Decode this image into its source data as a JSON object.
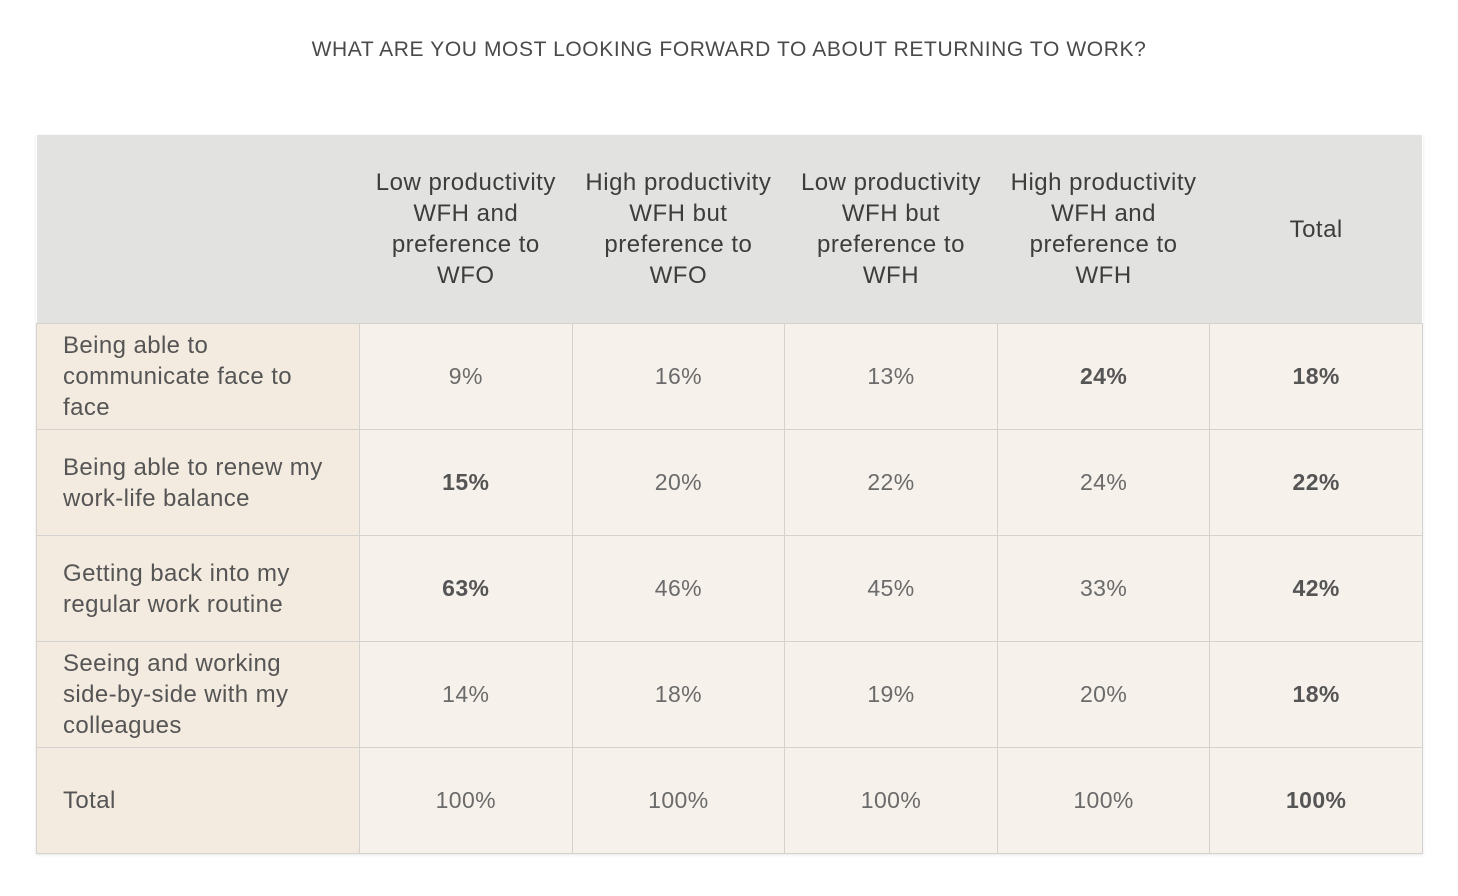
{
  "title": "WHAT ARE YOU MOST LOOKING FORWARD TO ABOUT RETURNING TO WORK?",
  "colors": {
    "header_bg": "#e2e2e0",
    "label_bg": "#f4ebe0",
    "cell_bg": "#f6f1eb",
    "border": "#d4d2cf"
  },
  "chart_data": {
    "type": "table",
    "title": "WHAT ARE YOU MOST LOOKING FORWARD TO ABOUT RETURNING TO WORK?",
    "columns": [
      "Low productivity WFH and preference to WFO",
      "High productivity WFH but preference to WFO",
      "Low productivity WFH but preference to WFH",
      "High productivity WFH and preference to WFH",
      "Total"
    ],
    "rows": [
      {
        "label": "Being able to communicate face to face",
        "values": [
          "9%",
          "16%",
          "13%",
          "24%",
          "18%"
        ],
        "bold": [
          false,
          false,
          false,
          true,
          true
        ]
      },
      {
        "label": "Being able to renew my work-life balance",
        "values": [
          "15%",
          "20%",
          "22%",
          "24%",
          "22%"
        ],
        "bold": [
          true,
          false,
          false,
          false,
          true
        ]
      },
      {
        "label": "Getting back into my regular work routine",
        "values": [
          "63%",
          "46%",
          "45%",
          "33%",
          "42%"
        ],
        "bold": [
          true,
          false,
          false,
          false,
          true
        ]
      },
      {
        "label": "Seeing and working side-by-side with my colleagues",
        "values": [
          "14%",
          "18%",
          "19%",
          "20%",
          "18%"
        ],
        "bold": [
          false,
          false,
          false,
          false,
          true
        ]
      },
      {
        "label": "Total",
        "values": [
          "100%",
          "100%",
          "100%",
          "100%",
          "100%"
        ],
        "bold": [
          false,
          false,
          false,
          false,
          true
        ]
      }
    ]
  }
}
